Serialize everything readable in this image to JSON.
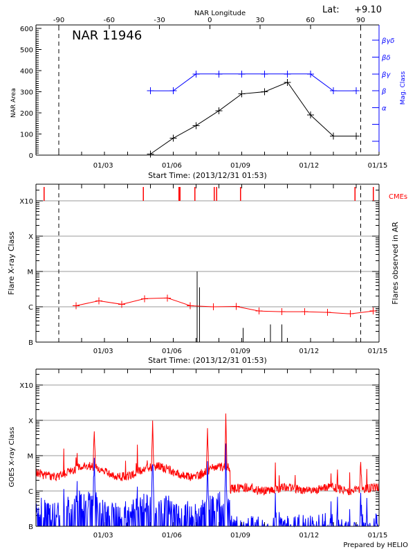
{
  "header": {
    "region_label": "NAR 11946",
    "lat_label": "Lat:",
    "lat_value": "+9.10",
    "top_axis_title": "NAR Longitude",
    "footer": "Prepared by HELIO"
  },
  "chart_data": [
    {
      "type": "line",
      "title": "NAR 11946",
      "xlabel": "Start Time: (2013/12/31 01:53)",
      "ylabel": "NAR Area",
      "y2label": "Mag. Class",
      "top_xlabel": "NAR Longitude",
      "xlim_days": [
        0,
        15
      ],
      "x_tick_labels": [
        "01/03",
        "01/06",
        "01/09",
        "01/12",
        "01/15"
      ],
      "x_tick_days": [
        3,
        6,
        9,
        12,
        15
      ],
      "top_tick_labels": [
        "-90",
        "-60",
        "-30",
        "0",
        "30",
        "60",
        "90"
      ],
      "ylim": [
        0,
        600
      ],
      "y_tick_labels": [
        "0",
        "100",
        "200",
        "300",
        "400",
        "500",
        "600"
      ],
      "y_tick_values": [
        0,
        100,
        200,
        300,
        400,
        500,
        600
      ],
      "y2_tick_labels": [
        "α",
        "β",
        "βγ",
        "βδ",
        "βγδ"
      ],
      "y2_tick_levels": [
        3,
        4,
        5,
        6,
        7
      ],
      "limb_lines_days": [
        1.0,
        14.2
      ],
      "series": [
        {
          "name": "NAR Area",
          "color": "#000000",
          "x_days": [
            5,
            6,
            7,
            8,
            9,
            10,
            11,
            12,
            13,
            14
          ],
          "values": [
            5,
            80,
            140,
            210,
            290,
            300,
            345,
            190,
            90,
            90
          ]
        },
        {
          "name": "Mag. Class",
          "color": "#0000ff",
          "x_days": [
            5,
            6,
            7,
            8,
            9,
            10,
            11,
            12,
            13,
            14
          ],
          "levels": [
            4,
            4,
            5,
            5,
            5,
            5,
            5,
            5,
            4,
            4
          ]
        }
      ]
    },
    {
      "type": "line",
      "xlabel": "Start Time: (2013/12/31 01:53)",
      "ylabel": "Flare X-ray Class",
      "y2label": "Flares observed in AR",
      "cme_label": "CMEs",
      "xlim_days": [
        0,
        15
      ],
      "x_tick_labels": [
        "01/03",
        "01/06",
        "01/09",
        "01/12",
        "01/15"
      ],
      "x_tick_days": [
        3,
        6,
        9,
        12,
        15
      ],
      "y_tick_labels": [
        "B",
        "C",
        "M",
        "X",
        "X10"
      ],
      "y_tick_logflux": [
        -7,
        -6,
        -5,
        -4,
        -3
      ],
      "limb_lines_days": [
        1.0,
        14.2
      ],
      "cme_times_days": [
        0.35,
        4.7,
        6.25,
        6.3,
        6.95,
        7.8,
        7.9,
        8.95,
        13.95,
        14.75
      ],
      "flare_times_days": [
        7.05,
        7.15,
        9.05,
        10.25,
        10.75
      ],
      "flare_peaks_logflux": [
        -5.0,
        -5.45,
        -6.6,
        -6.5,
        -6.5
      ],
      "background": {
        "color": "#ff0000",
        "x_days": [
          1.75,
          2.75,
          3.75,
          4.75,
          5.75,
          6.75,
          7.75,
          8.75,
          9.75,
          10.75,
          11.75,
          12.75,
          13.75,
          14.75
        ],
        "logflux": [
          -5.97,
          -5.83,
          -5.93,
          -5.77,
          -5.75,
          -5.97,
          -6.0,
          -5.99,
          -6.12,
          -6.14,
          -6.14,
          -6.16,
          -6.2,
          -6.12
        ]
      }
    },
    {
      "type": "line",
      "ylabel": "GOES X-ray Class",
      "xlim_days": [
        0,
        15
      ],
      "x_tick_labels": [
        "01/03",
        "01/06",
        "01/09",
        "01/12",
        "01/15"
      ],
      "x_tick_days": [
        3,
        6,
        9,
        12,
        15
      ],
      "y_tick_labels": [
        "B",
        "C",
        "M",
        "X",
        "X10"
      ],
      "y_tick_logflux": [
        -7,
        -6,
        -5,
        -4,
        -3
      ],
      "series": [
        {
          "name": "GOES long channel",
          "color": "#ff0000",
          "baseline_logflux": -5.6
        },
        {
          "name": "GOES short channel",
          "color": "#0000ff",
          "baseline_logflux": -7.0
        }
      ],
      "notable_peaks": [
        {
          "day": 2.55,
          "logflux": -4.2
        },
        {
          "day": 5.1,
          "logflux": -4.0
        },
        {
          "day": 7.5,
          "logflux": -4.2
        },
        {
          "day": 8.3,
          "logflux": -3.9
        },
        {
          "day": 14.2,
          "logflux": -5.1
        }
      ]
    }
  ]
}
